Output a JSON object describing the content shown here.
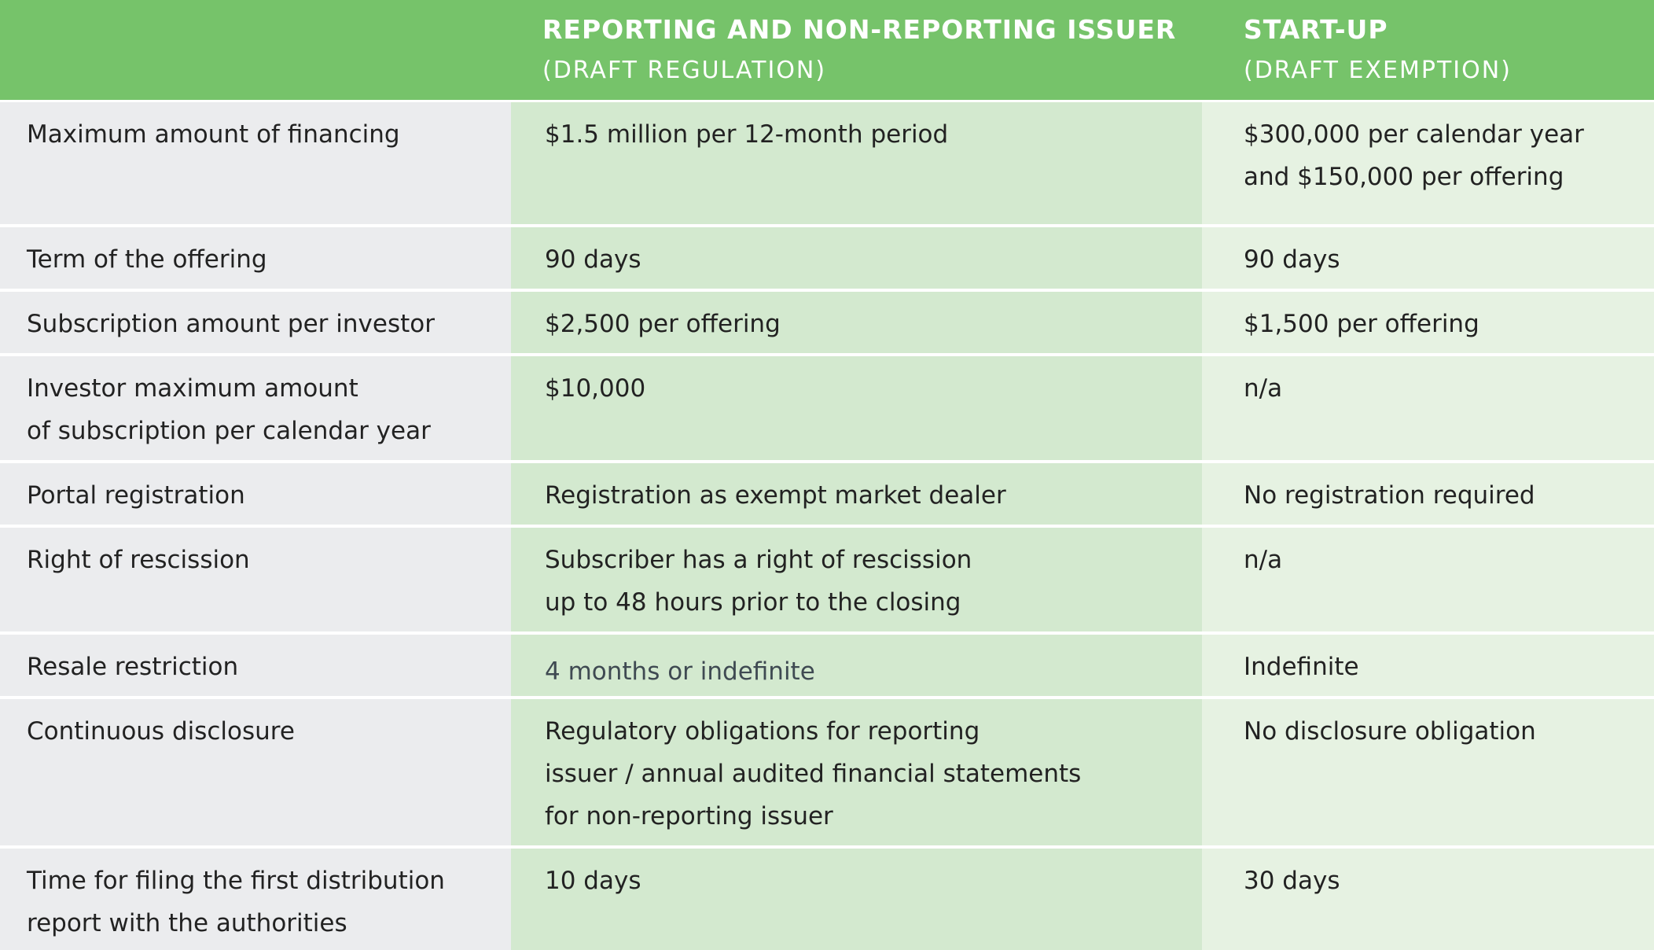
{
  "header": {
    "col1_title": "REPORTING AND NON-REPORTING ISSUER",
    "col1_sub": "(DRAFT REGULATION)",
    "col2_title": "START-UP",
    "col2_sub": "(DRAFT EXEMPTION)"
  },
  "rows": [
    {
      "label": [
        "Maximum amount of financing"
      ],
      "col1": [
        "$1.5 million per 12-month period"
      ],
      "col2": [
        "$300,000  per calendar year",
        "and $150,000  per offering"
      ]
    },
    {
      "label": [
        "Term of the offering"
      ],
      "col1": [
        "90 days"
      ],
      "col2": [
        "90 days"
      ]
    },
    {
      "label": [
        "Subscription amount per investor"
      ],
      "col1": [
        "$2,500 per offering"
      ],
      "col2": [
        "$1,500 per offering"
      ]
    },
    {
      "label": [
        "Investor maximum amount",
        "of subscription per calendar year"
      ],
      "col1": [
        "$10,000"
      ],
      "col2": [
        "n/a"
      ]
    },
    {
      "label": [
        "Portal registration"
      ],
      "col1": [
        "Registration as exempt market dealer"
      ],
      "col2": [
        "No registration required"
      ]
    },
    {
      "label": [
        "Right of rescission"
      ],
      "col1": [
        "Subscriber has a right of rescission",
        "up to 48 hours prior to the closing"
      ],
      "col2": [
        "n/a"
      ]
    },
    {
      "label": [
        "Resale restriction"
      ],
      "col1": [
        "4 months or indefinite"
      ],
      "col2": [
        "Indefinite"
      ]
    },
    {
      "label": [
        "Continuous disclosure"
      ],
      "col1": [
        "Regulatory obligations for reporting",
        "issuer / annual audited financial statements",
        "for non-reporting issuer"
      ],
      "col2": [
        "No disclosure obligation"
      ]
    },
    {
      "label": [
        "Time for filing the first distribution",
        "report with the authorities"
      ],
      "col1": [
        "10 days"
      ],
      "col2": [
        "30 days"
      ]
    }
  ]
}
